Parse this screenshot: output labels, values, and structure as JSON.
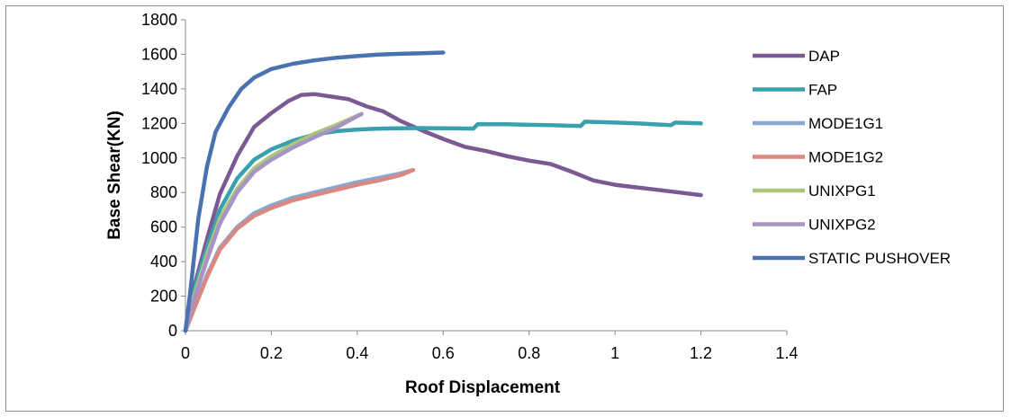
{
  "chart_data": {
    "type": "line",
    "title": "",
    "xlabel": "Roof Displacement",
    "ylabel": "Base Shear(KN)",
    "xlim": [
      0,
      1.4
    ],
    "ylim": [
      0,
      1800
    ],
    "x_ticks": [
      "0",
      "0.2",
      "0.4",
      "0.6",
      "0.8",
      "1",
      "1.2",
      "1.4"
    ],
    "y_ticks": [
      "0",
      "200",
      "400",
      "600",
      "800",
      "1000",
      "1200",
      "1400",
      "1600",
      "1800"
    ],
    "grid": false,
    "legend_position": "right",
    "series": [
      {
        "name": "DAP",
        "color": "#7b5a94",
        "points": [
          [
            0,
            0
          ],
          [
            0.02,
            250
          ],
          [
            0.05,
            530
          ],
          [
            0.08,
            790
          ],
          [
            0.12,
            1010
          ],
          [
            0.16,
            1180
          ],
          [
            0.2,
            1260
          ],
          [
            0.24,
            1330
          ],
          [
            0.27,
            1365
          ],
          [
            0.3,
            1370
          ],
          [
            0.34,
            1355
          ],
          [
            0.38,
            1340
          ],
          [
            0.42,
            1300
          ],
          [
            0.46,
            1270
          ],
          [
            0.5,
            1215
          ],
          [
            0.55,
            1160
          ],
          [
            0.6,
            1110
          ],
          [
            0.65,
            1065
          ],
          [
            0.7,
            1040
          ],
          [
            0.75,
            1010
          ],
          [
            0.8,
            985
          ],
          [
            0.85,
            965
          ],
          [
            0.9,
            920
          ],
          [
            0.95,
            870
          ],
          [
            1.0,
            845
          ],
          [
            1.05,
            830
          ],
          [
            1.1,
            815
          ],
          [
            1.15,
            800
          ],
          [
            1.2,
            785
          ]
        ]
      },
      {
        "name": "FAP",
        "color": "#3aa0ae",
        "points": [
          [
            0,
            0
          ],
          [
            0.02,
            230
          ],
          [
            0.05,
            480
          ],
          [
            0.08,
            700
          ],
          [
            0.12,
            880
          ],
          [
            0.16,
            990
          ],
          [
            0.2,
            1050
          ],
          [
            0.25,
            1100
          ],
          [
            0.3,
            1135
          ],
          [
            0.35,
            1155
          ],
          [
            0.4,
            1165
          ],
          [
            0.45,
            1170
          ],
          [
            0.5,
            1172
          ],
          [
            0.55,
            1173
          ],
          [
            0.6,
            1172
          ],
          [
            0.67,
            1170
          ],
          [
            0.68,
            1195
          ],
          [
            0.75,
            1195
          ],
          [
            0.8,
            1192
          ],
          [
            0.85,
            1190
          ],
          [
            0.92,
            1185
          ],
          [
            0.93,
            1210
          ],
          [
            1.0,
            1205
          ],
          [
            1.05,
            1200
          ],
          [
            1.13,
            1190
          ],
          [
            1.14,
            1205
          ],
          [
            1.2,
            1200
          ]
        ]
      },
      {
        "name": "MODE1G1",
        "color": "#8aa6d2",
        "points": [
          [
            0,
            0
          ],
          [
            0.02,
            130
          ],
          [
            0.05,
            320
          ],
          [
            0.08,
            480
          ],
          [
            0.12,
            600
          ],
          [
            0.16,
            680
          ],
          [
            0.2,
            725
          ],
          [
            0.25,
            770
          ],
          [
            0.3,
            800
          ],
          [
            0.35,
            830
          ],
          [
            0.4,
            860
          ],
          [
            0.45,
            885
          ],
          [
            0.5,
            910
          ],
          [
            0.53,
            930
          ]
        ]
      },
      {
        "name": "MODE1G2",
        "color": "#d9897f",
        "points": [
          [
            0,
            0
          ],
          [
            0.02,
            125
          ],
          [
            0.05,
            310
          ],
          [
            0.08,
            470
          ],
          [
            0.12,
            590
          ],
          [
            0.16,
            665
          ],
          [
            0.2,
            710
          ],
          [
            0.25,
            755
          ],
          [
            0.3,
            785
          ],
          [
            0.35,
            815
          ],
          [
            0.4,
            845
          ],
          [
            0.45,
            870
          ],
          [
            0.5,
            900
          ],
          [
            0.53,
            930
          ]
        ]
      },
      {
        "name": "UNIXPG1",
        "color": "#a9c77a",
        "points": [
          [
            0,
            0
          ],
          [
            0.02,
            200
          ],
          [
            0.05,
            440
          ],
          [
            0.08,
            650
          ],
          [
            0.12,
            820
          ],
          [
            0.16,
            940
          ],
          [
            0.2,
            1010
          ],
          [
            0.25,
            1080
          ],
          [
            0.3,
            1140
          ],
          [
            0.35,
            1190
          ],
          [
            0.41,
            1255
          ]
        ]
      },
      {
        "name": "UNIXPG2",
        "color": "#a893c6",
        "points": [
          [
            0,
            0
          ],
          [
            0.02,
            180
          ],
          [
            0.05,
            410
          ],
          [
            0.08,
            620
          ],
          [
            0.12,
            800
          ],
          [
            0.16,
            920
          ],
          [
            0.2,
            990
          ],
          [
            0.25,
            1060
          ],
          [
            0.3,
            1120
          ],
          [
            0.35,
            1175
          ],
          [
            0.41,
            1255
          ]
        ]
      },
      {
        "name": "STATIC PUSHOVER",
        "color": "#4a72b0",
        "points": [
          [
            0,
            0
          ],
          [
            0.01,
            200
          ],
          [
            0.03,
            650
          ],
          [
            0.05,
            950
          ],
          [
            0.07,
            1150
          ],
          [
            0.1,
            1290
          ],
          [
            0.13,
            1400
          ],
          [
            0.16,
            1465
          ],
          [
            0.2,
            1515
          ],
          [
            0.25,
            1545
          ],
          [
            0.3,
            1565
          ],
          [
            0.35,
            1580
          ],
          [
            0.4,
            1590
          ],
          [
            0.45,
            1598
          ],
          [
            0.5,
            1603
          ],
          [
            0.55,
            1606
          ],
          [
            0.6,
            1610
          ]
        ]
      }
    ]
  }
}
